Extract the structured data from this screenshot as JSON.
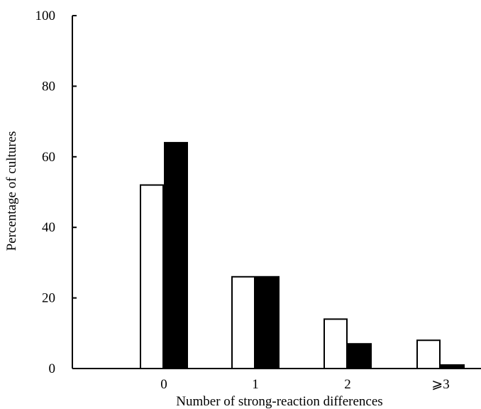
{
  "chart_data": {
    "type": "bar",
    "title": "",
    "xlabel": "Number of strong-reaction differences",
    "ylabel": "Percentage of cultures",
    "categories": [
      "0",
      "1",
      "2",
      "⩾3"
    ],
    "series": [
      {
        "values": [
          52,
          26,
          14,
          8
        ],
        "color": "#ffffff",
        "stroke": "#000000"
      },
      {
        "values": [
          64,
          26,
          7,
          1
        ],
        "color": "#000000",
        "stroke": "#000000"
      }
    ],
    "ylim": [
      0,
      100
    ],
    "yticks": [
      0,
      20,
      40,
      60,
      80,
      100
    ],
    "ytick_labels": [
      "0",
      "20",
      "40",
      "60",
      "80",
      "100"
    ],
    "grid": false,
    "legend": "none"
  }
}
